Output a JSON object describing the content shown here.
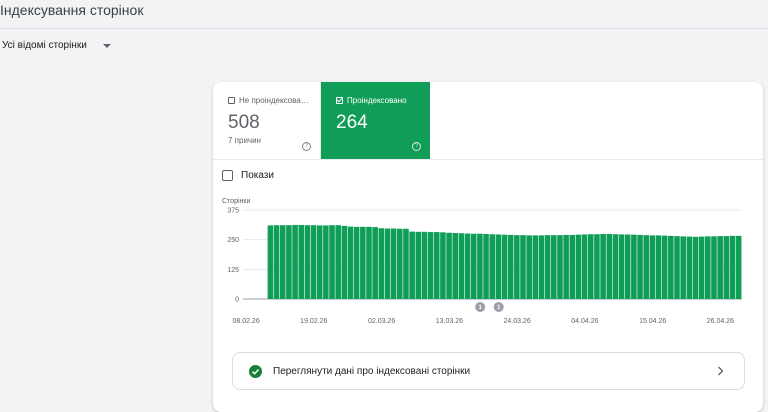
{
  "header": {
    "title": "Індексування сторінок"
  },
  "filter": {
    "label": "Усі відомі сторінки"
  },
  "tiles": {
    "not_indexed": {
      "label": "Не проіндексова…",
      "value": "508",
      "sub": "7 причин"
    },
    "indexed": {
      "label": "Проіндексовано",
      "value": "264"
    }
  },
  "show": {
    "label": "Покази"
  },
  "details": {
    "label": "Переглянути дані про індексовані сторінки"
  },
  "colors": {
    "bar": "#0f9d58",
    "grid": "#e8eaed",
    "annotation": "#9aa0a6"
  },
  "icons": {
    "help": "help-circle-icon",
    "success": "check-circle-icon",
    "chevron": "chevron-right-icon",
    "dropdown": "caret-down-icon"
  },
  "chart_data": {
    "type": "bar",
    "ylabel": "Сторінки",
    "ylim": [
      0,
      375
    ],
    "yticks": [
      0,
      125,
      250,
      375
    ],
    "xticks": [
      "08.02.26",
      "19.02.26",
      "02.03.26",
      "13.03.26",
      "24.03.26",
      "04.04.26",
      "15.04.26",
      "26.04.26"
    ],
    "annotations": [
      {
        "label": "1",
        "day_index": 38
      },
      {
        "label": "1",
        "day_index": 41
      }
    ],
    "values": [
      0,
      0,
      0,
      0,
      310,
      311,
      311,
      311,
      312,
      312,
      311,
      311,
      310,
      310,
      311,
      311,
      308,
      305,
      304,
      304,
      304,
      303,
      298,
      297,
      297,
      296,
      296,
      284,
      283,
      283,
      282,
      282,
      281,
      279,
      278,
      277,
      276,
      275,
      275,
      274,
      273,
      272,
      271,
      270,
      269,
      269,
      268,
      268,
      268,
      269,
      269,
      269,
      270,
      270,
      271,
      272,
      273,
      273,
      274,
      274,
      273,
      272,
      272,
      271,
      270,
      269,
      268,
      268,
      267,
      266,
      265,
      264,
      263,
      262,
      263,
      264,
      264,
      265,
      265,
      266,
      266
    ]
  }
}
